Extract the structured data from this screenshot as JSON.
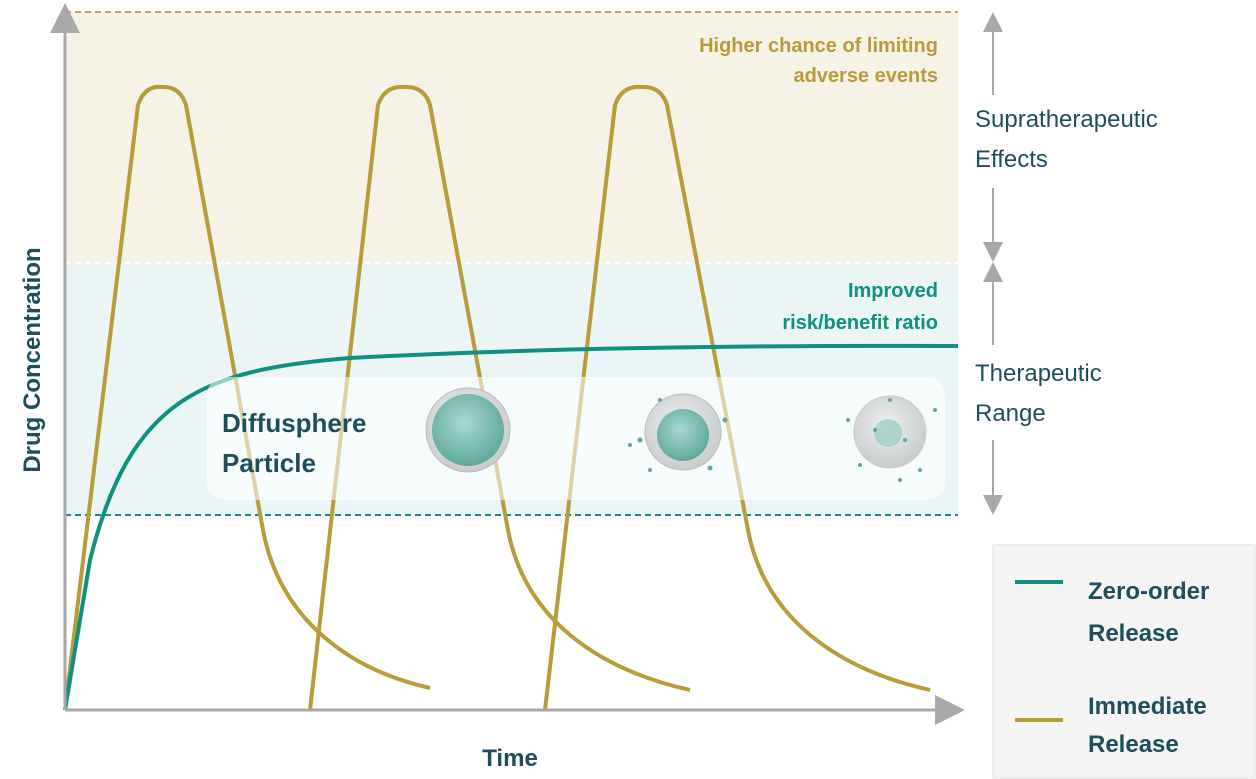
{
  "y_axis_label": "Drug Concentration",
  "x_axis_label": "Time",
  "zones": [
    {
      "label_lines": [
        "Supratherapeutic",
        "Effects"
      ],
      "note_lines": [
        "Higher chance of limiting",
        "adverse events"
      ]
    },
    {
      "label_lines": [
        "Therapeutic",
        "Range"
      ],
      "note_lines": [
        "Improved",
        "risk/benefit ratio"
      ]
    }
  ],
  "particle_label_lines": [
    "Diffusphere",
    "Particle"
  ],
  "legend": [
    {
      "label_lines": [
        "Zero-order",
        "Release"
      ]
    },
    {
      "label_lines": [
        "Immediate",
        "Release"
      ]
    }
  ]
}
